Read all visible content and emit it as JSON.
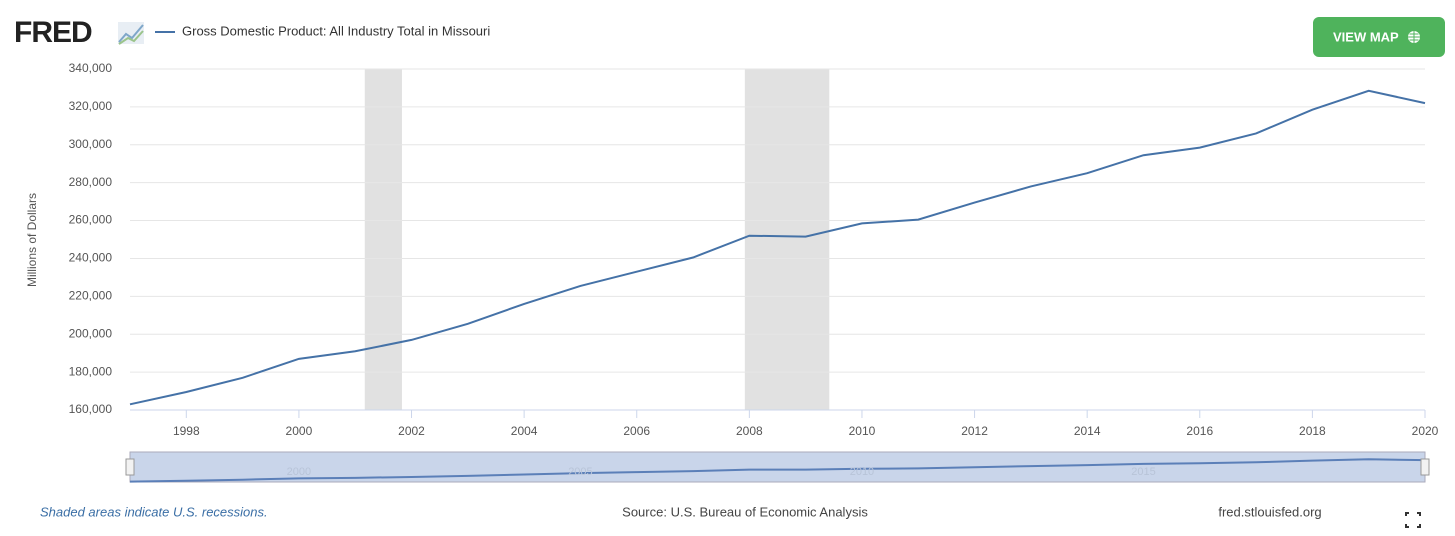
{
  "brand": "FRED",
  "button": "VIEW MAP",
  "footer": {
    "note": "Shaded areas indicate U.S. recessions.",
    "source": "Source: U.S. Bureau of Economic Analysis",
    "site": "fred.stlouisfed.org"
  },
  "chart_data": {
    "type": "line",
    "y_label": "Millions of Dollars",
    "x": [
      1997,
      1998,
      1999,
      2000,
      2001,
      2002,
      2003,
      2004,
      2005,
      2006,
      2007,
      2008,
      2009,
      2010,
      2011,
      2012,
      2013,
      2014,
      2015,
      2016,
      2017,
      2018,
      2019,
      2020
    ],
    "series": [
      {
        "name": "Gross Domestic Product: All Industry Total in Missouri",
        "color": "#4572a7",
        "values": [
          163000,
          169500,
          177000,
          187000,
          191000,
          197000,
          205500,
          216000,
          225500,
          233000,
          240500,
          252000,
          251500,
          258500,
          260500,
          269500,
          278000,
          285000,
          294500,
          298500,
          306000,
          318500,
          328500,
          322000
        ]
      }
    ],
    "recessions": [
      [
        2001.17,
        2001.83
      ],
      [
        2007.92,
        2009.42
      ]
    ],
    "xlim": [
      1997,
      2020
    ],
    "xticks": [
      1998,
      2000,
      2002,
      2004,
      2006,
      2008,
      2010,
      2012,
      2014,
      2016,
      2018,
      2020
    ],
    "ylim": [
      160000,
      340000
    ],
    "yticks": [
      {
        "value": 160000,
        "label": "160,000"
      },
      {
        "value": 180000,
        "label": "180,000"
      },
      {
        "value": 200000,
        "label": "200,000"
      },
      {
        "value": 220000,
        "label": "220,000"
      },
      {
        "value": 240000,
        "label": "240,000"
      },
      {
        "value": 260000,
        "label": "260,000"
      },
      {
        "value": 280000,
        "label": "280,000"
      },
      {
        "value": 300000,
        "label": "300,000"
      },
      {
        "value": 320000,
        "label": "320,000"
      },
      {
        "value": 340000,
        "label": "340,000"
      }
    ],
    "navigator_xticks": [
      2000,
      2005,
      2010,
      2015
    ],
    "grid": true
  }
}
